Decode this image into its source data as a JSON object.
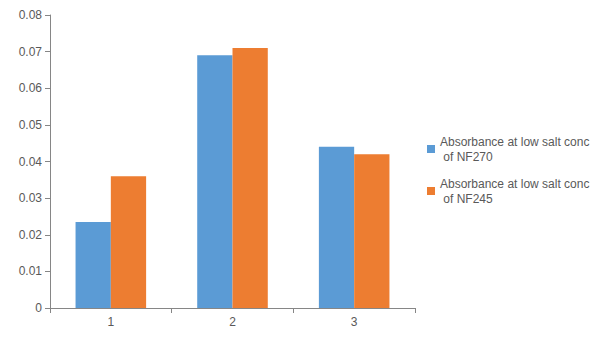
{
  "chart_data": {
    "type": "bar",
    "categories": [
      "1",
      "2",
      "3"
    ],
    "series": [
      {
        "name": "Absorbance at low salt conc of NF270",
        "color": "#5b9bd5",
        "values": [
          0.0235,
          0.069,
          0.044
        ]
      },
      {
        "name": "Absorbance at low salt conc of NF245",
        "color": "#ed7d31",
        "values": [
          0.036,
          0.071,
          0.042
        ]
      }
    ],
    "ylim": [
      0,
      0.08
    ],
    "yticks": [
      0,
      0.01,
      0.02,
      0.03,
      0.04,
      0.05,
      0.06,
      0.07,
      0.08
    ],
    "grid": false,
    "legend": "right"
  }
}
